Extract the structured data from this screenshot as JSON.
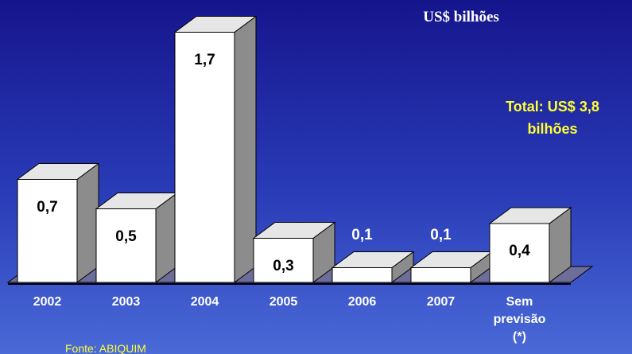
{
  "chart_data": {
    "type": "bar3d",
    "title": "US$ bilhões",
    "annotation": "Total: US$ 3,8 bilhões",
    "source": "Fonte: ABIQUIM",
    "categories": [
      "2002",
      "2003",
      "2004",
      "2005",
      "2006",
      "2007",
      "Sem previsão (*)"
    ],
    "values": [
      0.7,
      0.5,
      1.7,
      0.3,
      0.1,
      0.1,
      0.4
    ],
    "value_labels": [
      "0,7",
      "0,5",
      "1,7",
      "0,3",
      "0,1",
      "0,1",
      "0,4"
    ],
    "color": "#ffffff"
  }
}
